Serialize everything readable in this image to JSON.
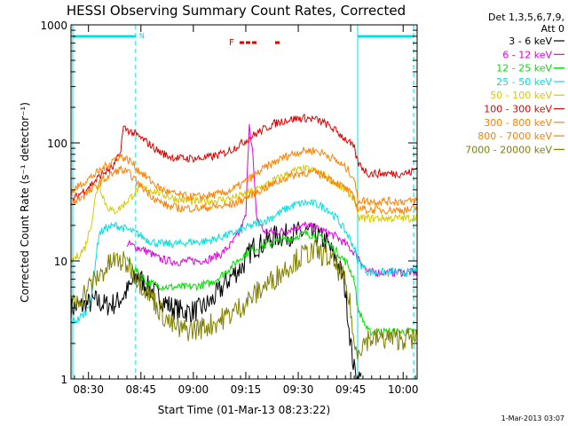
{
  "chart_data": {
    "type": "line",
    "title": "HESSI Observing Summary Count Rates, Corrected",
    "xlabel": "Start Time (01-Mar-13 08:23:22)",
    "ylabel": "Corrected Count Rate (s⁻¹ detector⁻¹)",
    "y_scale": "log",
    "ylim": [
      1,
      1000
    ],
    "xlim_minutes": [
      505,
      604
    ],
    "x_ticks": [
      {
        "label": "08:30",
        "minute": 510
      },
      {
        "label": "08:45",
        "minute": 525
      },
      {
        "label": "09:00",
        "minute": 540
      },
      {
        "label": "09:15",
        "minute": 555
      },
      {
        "label": "09:30",
        "minute": 570
      },
      {
        "label": "09:45",
        "minute": 585
      },
      {
        "label": "10:00",
        "minute": 600
      }
    ],
    "y_ticks": [
      {
        "label": "1",
        "value": 1
      },
      {
        "label": "10",
        "value": 10
      },
      {
        "label": "100",
        "value": 100
      },
      {
        "label": "1000",
        "value": 1000
      }
    ],
    "legend_header": [
      "Det 1,3,5,6,7,9,",
      "Att 0"
    ],
    "legend_position": "right",
    "series": [
      {
        "name": "3 - 6 keV",
        "color": "#000000",
        "x": [
          505,
          509,
          512,
          515,
          518,
          521,
          524,
          527,
          530,
          533,
          536,
          539,
          542,
          545,
          548,
          551,
          554,
          557,
          560,
          563,
          566,
          569,
          572,
          575,
          578,
          581,
          583,
          584,
          585,
          586,
          587,
          588
        ],
        "y": [
          4,
          4.2,
          4.6,
          4.2,
          4.4,
          5.5,
          7.5,
          6,
          5,
          4.2,
          3.8,
          3.7,
          3.9,
          4.5,
          5.8,
          7.5,
          9,
          13,
          14,
          16,
          16.5,
          17,
          17.5,
          16.5,
          14.5,
          10,
          7,
          4,
          2,
          1.2,
          1,
          1
        ]
      },
      {
        "name": "6 - 12 keV",
        "color": "#e000e0",
        "x": [
          521,
          524,
          527,
          530,
          533,
          536,
          539,
          542,
          545,
          548,
          551,
          553,
          555,
          556,
          557,
          558,
          560,
          563,
          566,
          569,
          572,
          575,
          578,
          581,
          584,
          587,
          590,
          593,
          596,
          599,
          602,
          604
        ],
        "y": [
          14,
          13,
          12,
          10.5,
          10,
          9.8,
          10,
          10,
          10.5,
          11.5,
          14,
          17,
          24,
          150,
          80,
          24,
          18,
          17.5,
          18,
          19,
          20,
          19,
          17.5,
          16,
          13.5,
          11,
          8,
          8,
          8,
          8,
          8,
          8
        ]
      },
      {
        "name": "12 - 25 keV",
        "color": "#00e000",
        "x": [
          521,
          524,
          527,
          530,
          533,
          536,
          539,
          542,
          545,
          548,
          551,
          554,
          557,
          560,
          563,
          566,
          569,
          572,
          575,
          578,
          581,
          584,
          586,
          587,
          590,
          593,
          596,
          599,
          602,
          604
        ],
        "y": [
          10.5,
          8,
          6.5,
          6.2,
          6,
          6,
          6,
          6.2,
          6.5,
          7.5,
          9,
          11,
          12.5,
          13.5,
          14.5,
          15,
          16,
          17,
          16.5,
          14.5,
          12,
          9.5,
          7,
          4,
          2.5,
          2.5,
          2.5,
          2.5,
          2.5,
          2.5
        ]
      },
      {
        "name": "25 - 50 keV",
        "color": "#00e0e0",
        "x": [
          505,
          507,
          509,
          511,
          512,
          513,
          515,
          518,
          521,
          524,
          527,
          530,
          533,
          536,
          539,
          542,
          545,
          548,
          551,
          554,
          557,
          560,
          563,
          566,
          569,
          572,
          575,
          578,
          581,
          584,
          586,
          587,
          590,
          593,
          596,
          599,
          602,
          604
        ],
        "y": [
          3,
          3.2,
          3.6,
          5,
          10,
          17,
          19,
          20,
          18.5,
          17,
          15,
          14,
          14,
          14,
          14.5,
          14.5,
          15,
          16,
          17,
          18.5,
          20,
          21.5,
          24,
          27,
          30,
          31,
          30.5,
          28,
          23,
          17,
          13,
          10,
          8,
          8,
          8,
          8,
          8,
          8.5
        ]
      },
      {
        "name": "50 - 100 keV",
        "color": "#d8c800",
        "x": [
          505,
          507,
          509,
          511,
          512,
          513,
          515,
          517,
          519,
          521,
          524,
          527,
          530,
          533,
          536,
          539,
          542,
          545,
          548,
          551,
          554,
          557,
          560,
          563,
          566,
          569,
          572,
          575,
          578,
          581,
          584,
          586,
          587,
          590,
          593,
          596,
          599,
          602,
          604
        ],
        "y": [
          10,
          11,
          13,
          22,
          35,
          45,
          30,
          26,
          28,
          32,
          40,
          41,
          38,
          35,
          33,
          32,
          32,
          32,
          33,
          34,
          36,
          39,
          43,
          48,
          53,
          58,
          60,
          58,
          52,
          45,
          38,
          34,
          23,
          23,
          23,
          23,
          23,
          23,
          24
        ]
      },
      {
        "name": "100 - 300 keV",
        "color": "#e00000",
        "x": [
          505,
          508,
          511,
          514,
          517,
          519,
          520,
          522,
          524,
          527,
          530,
          533,
          536,
          539,
          542,
          545,
          548,
          551,
          554,
          557,
          560,
          563,
          566,
          569,
          572,
          575,
          578,
          581,
          584,
          586,
          587,
          590,
          593,
          596,
          599,
          602,
          604
        ],
        "y": [
          32,
          38,
          45,
          55,
          62,
          80,
          135,
          125,
          115,
          100,
          85,
          77,
          74,
          74,
          74,
          76,
          80,
          88,
          100,
          115,
          130,
          145,
          155,
          160,
          162,
          158,
          145,
          125,
          105,
          90,
          68,
          55,
          55,
          55,
          55,
          56,
          62
        ]
      },
      {
        "name": "300 - 800 keV",
        "color": "#ff8000",
        "x": [
          505,
          508,
          511,
          514,
          517,
          519,
          520,
          522,
          524,
          527,
          530,
          533,
          536,
          539,
          542,
          545,
          548,
          551,
          554,
          557,
          560,
          563,
          566,
          569,
          572,
          575,
          578,
          581,
          584,
          586,
          587,
          590,
          593,
          596,
          599,
          602,
          604
        ],
        "y": [
          38,
          45,
          52,
          60,
          72,
          78,
          75,
          70,
          60,
          50,
          42,
          38,
          36,
          35,
          35,
          36,
          37,
          40,
          45,
          52,
          60,
          68,
          76,
          82,
          86,
          86,
          80,
          70,
          60,
          50,
          33,
          32,
          32,
          32,
          32,
          32,
          33
        ]
      },
      {
        "name": "800 - 7000 keV",
        "color": "#ff8000",
        "x": [
          505,
          508,
          511,
          514,
          517,
          519,
          520,
          522,
          524,
          527,
          530,
          533,
          536,
          539,
          542,
          545,
          548,
          551,
          554,
          557,
          560,
          563,
          566,
          569,
          572,
          575,
          578,
          581,
          584,
          586,
          587,
          590,
          593,
          596,
          599,
          602,
          604
        ],
        "y": [
          30,
          35,
          40,
          48,
          55,
          60,
          58,
          54,
          46,
          38,
          32,
          29,
          28,
          28,
          28,
          28.5,
          29,
          30,
          33,
          37,
          41,
          45,
          50,
          54,
          56,
          56,
          52,
          46,
          40,
          34,
          28,
          27,
          27,
          27,
          27,
          27,
          28
        ]
      },
      {
        "name": "7000 - 20000 keV",
        "color": "#808000",
        "x": [
          505,
          508,
          511,
          514,
          517,
          519,
          522,
          524,
          526,
          528,
          530,
          533,
          536,
          539,
          542,
          545,
          548,
          551,
          554,
          557,
          560,
          563,
          566,
          569,
          572,
          575,
          578,
          581,
          583,
          585,
          586,
          587,
          590,
          593,
          596,
          599,
          602,
          604
        ],
        "y": [
          4,
          5,
          6.5,
          8,
          10,
          10,
          9,
          7,
          6,
          5,
          4,
          3,
          2.6,
          2.6,
          2.7,
          2.9,
          3.2,
          3.6,
          4.2,
          5,
          6,
          7,
          8.5,
          10,
          11.5,
          12,
          11,
          9,
          7,
          4,
          1.8,
          1.8,
          2.2,
          2.2,
          2.2,
          2.2,
          2.2,
          2.2
        ]
      }
    ],
    "annotations": [
      {
        "text": "N",
        "color": "#00e0e0"
      },
      {
        "text": "F",
        "color": "#e00000"
      }
    ],
    "date_stamp": "1-Mar-2013 03:07"
  }
}
